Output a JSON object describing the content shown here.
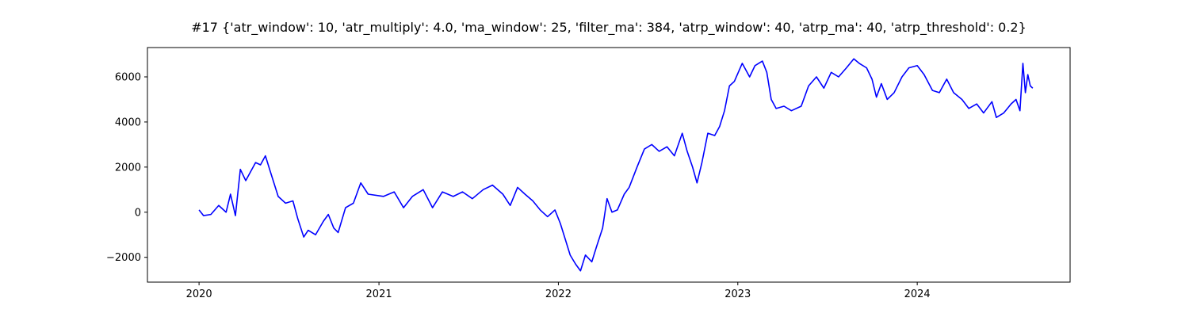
{
  "chart_data": {
    "type": "line",
    "title": "#17 {'atr_window': 10, 'atr_multiply': 4.0, 'ma_window': 25, 'filter_ma': 384, 'atrp_window': 40, 'atrp_ma': 40, 'atrp_threshold': 0.2}",
    "xlabel": "",
    "ylabel": "",
    "grid": false,
    "legend": "none",
    "xlim": [
      "2019-09-18",
      "2024-11-07"
    ],
    "ylim": [
      -3100,
      7300
    ],
    "x_ticks": [
      "2020-01-01",
      "2021-01-01",
      "2022-01-01",
      "2023-01-01",
      "2024-01-01"
    ],
    "x_tick_labels": [
      "2020",
      "2021",
      "2022",
      "2023",
      "2024"
    ],
    "y_ticks": [
      -2000,
      0,
      2000,
      4000,
      6000
    ],
    "y_tick_labels": [
      "−2000",
      "0",
      "2000",
      "4000",
      "6000"
    ],
    "series": [
      {
        "color": "#0000ff",
        "points": [
          [
            "2020-01-01",
            100
          ],
          [
            "2020-01-10",
            -150
          ],
          [
            "2020-01-25",
            -100
          ],
          [
            "2020-02-10",
            300
          ],
          [
            "2020-02-25",
            0
          ],
          [
            "2020-03-05",
            800
          ],
          [
            "2020-03-15",
            -150
          ],
          [
            "2020-03-25",
            1900
          ],
          [
            "2020-04-05",
            1400
          ],
          [
            "2020-04-15",
            1800
          ],
          [
            "2020-04-25",
            2200
          ],
          [
            "2020-05-05",
            2100
          ],
          [
            "2020-05-15",
            2500
          ],
          [
            "2020-05-25",
            1800
          ],
          [
            "2020-06-10",
            700
          ],
          [
            "2020-06-25",
            400
          ],
          [
            "2020-07-10",
            500
          ],
          [
            "2020-07-20",
            -300
          ],
          [
            "2020-08-01",
            -1100
          ],
          [
            "2020-08-10",
            -800
          ],
          [
            "2020-08-25",
            -1000
          ],
          [
            "2020-09-10",
            -400
          ],
          [
            "2020-09-20",
            -100
          ],
          [
            "2020-10-01",
            -700
          ],
          [
            "2020-10-10",
            -900
          ],
          [
            "2020-10-25",
            200
          ],
          [
            "2020-11-10",
            400
          ],
          [
            "2020-11-25",
            1300
          ],
          [
            "2020-12-10",
            800
          ],
          [
            "2021-01-10",
            700
          ],
          [
            "2021-02-01",
            900
          ],
          [
            "2021-02-20",
            200
          ],
          [
            "2021-03-10",
            700
          ],
          [
            "2021-04-01",
            1000
          ],
          [
            "2021-04-20",
            200
          ],
          [
            "2021-05-10",
            900
          ],
          [
            "2021-06-01",
            700
          ],
          [
            "2021-06-20",
            900
          ],
          [
            "2021-07-10",
            600
          ],
          [
            "2021-08-01",
            1000
          ],
          [
            "2021-08-20",
            1200
          ],
          [
            "2021-09-10",
            800
          ],
          [
            "2021-09-25",
            300
          ],
          [
            "2021-10-10",
            1100
          ],
          [
            "2021-10-25",
            800
          ],
          [
            "2021-11-10",
            500
          ],
          [
            "2021-11-25",
            100
          ],
          [
            "2021-12-10",
            -200
          ],
          [
            "2021-12-25",
            100
          ],
          [
            "2022-01-05",
            -500
          ],
          [
            "2022-01-15",
            -1200
          ],
          [
            "2022-01-25",
            -1900
          ],
          [
            "2022-02-05",
            -2300
          ],
          [
            "2022-02-15",
            -2600
          ],
          [
            "2022-02-25",
            -1900
          ],
          [
            "2022-03-10",
            -2200
          ],
          [
            "2022-03-20",
            -1500
          ],
          [
            "2022-04-01",
            -700
          ],
          [
            "2022-04-10",
            600
          ],
          [
            "2022-04-20",
            0
          ],
          [
            "2022-05-01",
            100
          ],
          [
            "2022-05-15",
            800
          ],
          [
            "2022-05-25",
            1100
          ],
          [
            "2022-06-10",
            2000
          ],
          [
            "2022-06-25",
            2800
          ],
          [
            "2022-07-10",
            3000
          ],
          [
            "2022-07-25",
            2700
          ],
          [
            "2022-08-10",
            2900
          ],
          [
            "2022-08-25",
            2500
          ],
          [
            "2022-09-10",
            3500
          ],
          [
            "2022-09-20",
            2700
          ],
          [
            "2022-10-01",
            2000
          ],
          [
            "2022-10-10",
            1300
          ],
          [
            "2022-10-20",
            2200
          ],
          [
            "2022-11-01",
            3500
          ],
          [
            "2022-11-15",
            3400
          ],
          [
            "2022-11-25",
            3800
          ],
          [
            "2022-12-05",
            4500
          ],
          [
            "2022-12-15",
            5600
          ],
          [
            "2022-12-25",
            5800
          ],
          [
            "2023-01-10",
            6600
          ],
          [
            "2023-01-25",
            6000
          ],
          [
            "2023-02-05",
            6500
          ],
          [
            "2023-02-20",
            6700
          ],
          [
            "2023-03-01",
            6200
          ],
          [
            "2023-03-10",
            5000
          ],
          [
            "2023-03-20",
            4600
          ],
          [
            "2023-04-05",
            4700
          ],
          [
            "2023-04-20",
            4500
          ],
          [
            "2023-05-10",
            4700
          ],
          [
            "2023-05-25",
            5600
          ],
          [
            "2023-06-10",
            6000
          ],
          [
            "2023-06-25",
            5500
          ],
          [
            "2023-07-10",
            6200
          ],
          [
            "2023-07-25",
            6000
          ],
          [
            "2023-08-10",
            6400
          ],
          [
            "2023-08-25",
            6800
          ],
          [
            "2023-09-05",
            6600
          ],
          [
            "2023-09-20",
            6400
          ],
          [
            "2023-10-01",
            5900
          ],
          [
            "2023-10-10",
            5100
          ],
          [
            "2023-10-20",
            5700
          ],
          [
            "2023-11-01",
            5000
          ],
          [
            "2023-11-15",
            5300
          ],
          [
            "2023-12-01",
            6000
          ],
          [
            "2023-12-15",
            6400
          ],
          [
            "2024-01-01",
            6500
          ],
          [
            "2024-01-15",
            6100
          ],
          [
            "2024-02-01",
            5400
          ],
          [
            "2024-02-15",
            5300
          ],
          [
            "2024-03-01",
            5900
          ],
          [
            "2024-03-15",
            5300
          ],
          [
            "2024-04-01",
            5000
          ],
          [
            "2024-04-15",
            4600
          ],
          [
            "2024-05-01",
            4800
          ],
          [
            "2024-05-15",
            4400
          ],
          [
            "2024-06-01",
            4900
          ],
          [
            "2024-06-10",
            4200
          ],
          [
            "2024-06-25",
            4400
          ],
          [
            "2024-07-10",
            4800
          ],
          [
            "2024-07-20",
            5000
          ],
          [
            "2024-07-28",
            4500
          ],
          [
            "2024-08-03",
            6600
          ],
          [
            "2024-08-08",
            5300
          ],
          [
            "2024-08-13",
            6100
          ],
          [
            "2024-08-18",
            5600
          ],
          [
            "2024-08-23",
            5500
          ]
        ]
      }
    ]
  }
}
